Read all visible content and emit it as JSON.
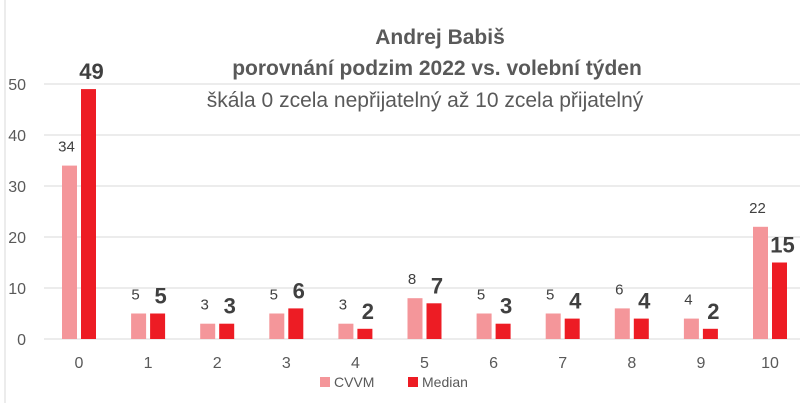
{
  "chart_data": {
    "type": "bar",
    "title": "Andrej Babiš",
    "subtitle": "porovnání podzim 2022 vs. volební týden",
    "subtitle2": "škála 0 zcela nepřijatelný až 10 zcela přijatelný",
    "categories": [
      "0",
      "1",
      "2",
      "3",
      "4",
      "5",
      "6",
      "7",
      "8",
      "9",
      "10"
    ],
    "series": [
      {
        "name": "CVVM",
        "color": "#f4969a",
        "values": [
          34,
          5,
          3,
          5,
          3,
          8,
          5,
          5,
          6,
          4,
          22
        ]
      },
      {
        "name": "Median",
        "color": "#ed1c24",
        "values": [
          49,
          5,
          3,
          6,
          2,
          7,
          3,
          4,
          4,
          2,
          15
        ]
      }
    ],
    "ylim": [
      0,
      50
    ],
    "yticks": [
      "0",
      "10",
      "20",
      "30",
      "40",
      "50"
    ],
    "grid": true,
    "legend": "bottom"
  }
}
